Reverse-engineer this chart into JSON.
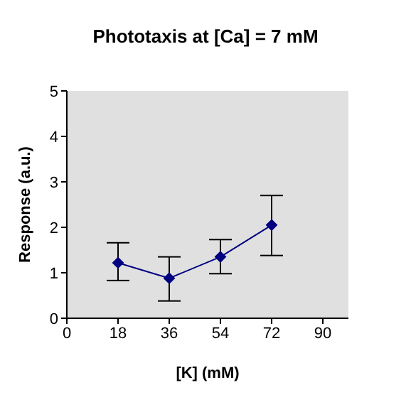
{
  "chart_data": {
    "type": "line",
    "title": "Phototaxis at [Ca] = 7 mM",
    "xlabel": "[K]  (mM)",
    "ylabel": "Response (a.u.)",
    "x": [
      18,
      36,
      54,
      72
    ],
    "series": [
      {
        "color": "#000080",
        "values": [
          1.22,
          0.88,
          1.35,
          2.05
        ],
        "errors": [
          [
            0.83,
            1.66
          ],
          [
            0.38,
            1.35
          ],
          [
            0.98,
            1.73
          ],
          [
            1.38,
            2.7
          ]
        ]
      }
    ],
    "xlim": [
      0,
      99
    ],
    "xticks": [
      0,
      18,
      36,
      54,
      72,
      90
    ],
    "ylim": [
      0,
      5
    ],
    "yticks": [
      0,
      1,
      2,
      3,
      4,
      5
    ],
    "grid": false,
    "marker": "diamond",
    "line_style": "solid"
  }
}
